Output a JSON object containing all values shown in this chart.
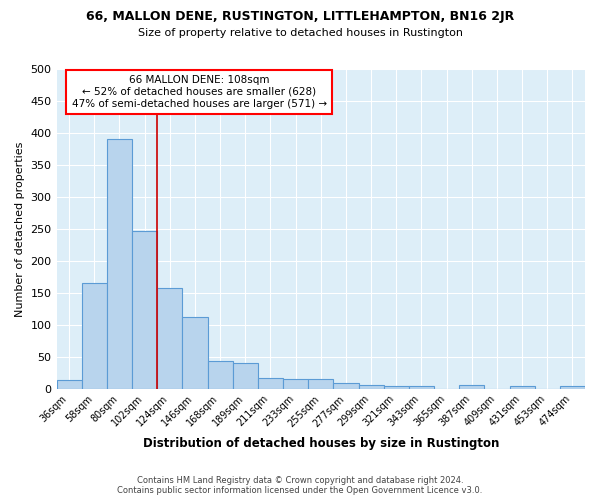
{
  "title": "66, MALLON DENE, RUSTINGTON, LITTLEHAMPTON, BN16 2JR",
  "subtitle": "Size of property relative to detached houses in Rustington",
  "xlabel": "Distribution of detached houses by size in Rustington",
  "ylabel": "Number of detached properties",
  "footer_line1": "Contains HM Land Registry data © Crown copyright and database right 2024.",
  "footer_line2": "Contains public sector information licensed under the Open Government Licence v3.0.",
  "categories": [
    "36sqm",
    "58sqm",
    "80sqm",
    "102sqm",
    "124sqm",
    "146sqm",
    "168sqm",
    "189sqm",
    "211sqm",
    "233sqm",
    "255sqm",
    "277sqm",
    "299sqm",
    "321sqm",
    "343sqm",
    "365sqm",
    "387sqm",
    "409sqm",
    "431sqm",
    "453sqm",
    "474sqm"
  ],
  "values": [
    13,
    165,
    390,
    247,
    157,
    113,
    44,
    40,
    17,
    15,
    15,
    9,
    6,
    5,
    4,
    0,
    6,
    0,
    4,
    0,
    5
  ],
  "bar_color": "#b8d4ed",
  "bar_edge_color": "#5b9bd5",
  "background_color": "#ddeef8",
  "annotation_text_line1": "66 MALLON DENE: 108sqm",
  "annotation_text_line2": "← 52% of detached houses are smaller (628)",
  "annotation_text_line3": "47% of semi-detached houses are larger (571) →",
  "annotation_box_color": "white",
  "annotation_box_edge_color": "red",
  "vline_color": "#cc0000",
  "vline_position": 3.5,
  "ylim": [
    0,
    500
  ],
  "yticks": [
    0,
    50,
    100,
    150,
    200,
    250,
    300,
    350,
    400,
    450,
    500
  ]
}
